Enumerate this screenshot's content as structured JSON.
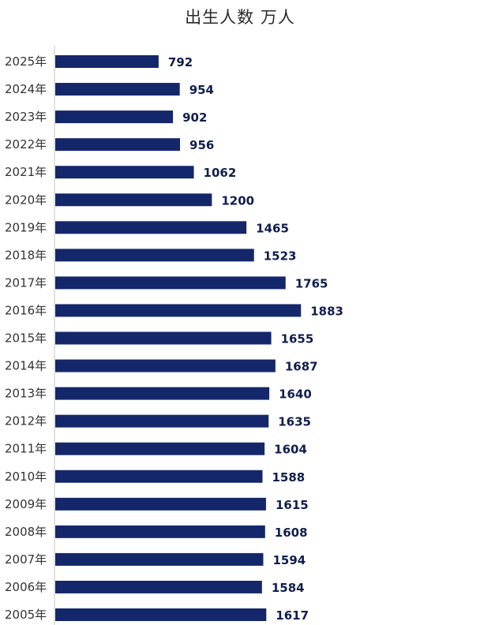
{
  "chart_data": {
    "type": "bar",
    "orientation": "horizontal",
    "title": "出生人数 万人",
    "categories": [
      "2025年",
      "2024年",
      "2023年",
      "2022年",
      "2021年",
      "2020年",
      "2019年",
      "2018年",
      "2017年",
      "2016年",
      "2015年",
      "2014年",
      "2013年",
      "2012年",
      "2011年",
      "2010年",
      "2009年",
      "2008年",
      "2007年",
      "2006年",
      "2005年"
    ],
    "values": [
      792,
      954,
      902,
      956,
      1062,
      1200,
      1465,
      1523,
      1765,
      1883,
      1655,
      1687,
      1640,
      1635,
      1604,
      1588,
      1615,
      1608,
      1594,
      1584,
      1617
    ],
    "xlabel": "",
    "ylabel": "",
    "grid": false,
    "legend": "none",
    "bar_color": "#14276b",
    "axis_color": "#d9d9d9"
  }
}
